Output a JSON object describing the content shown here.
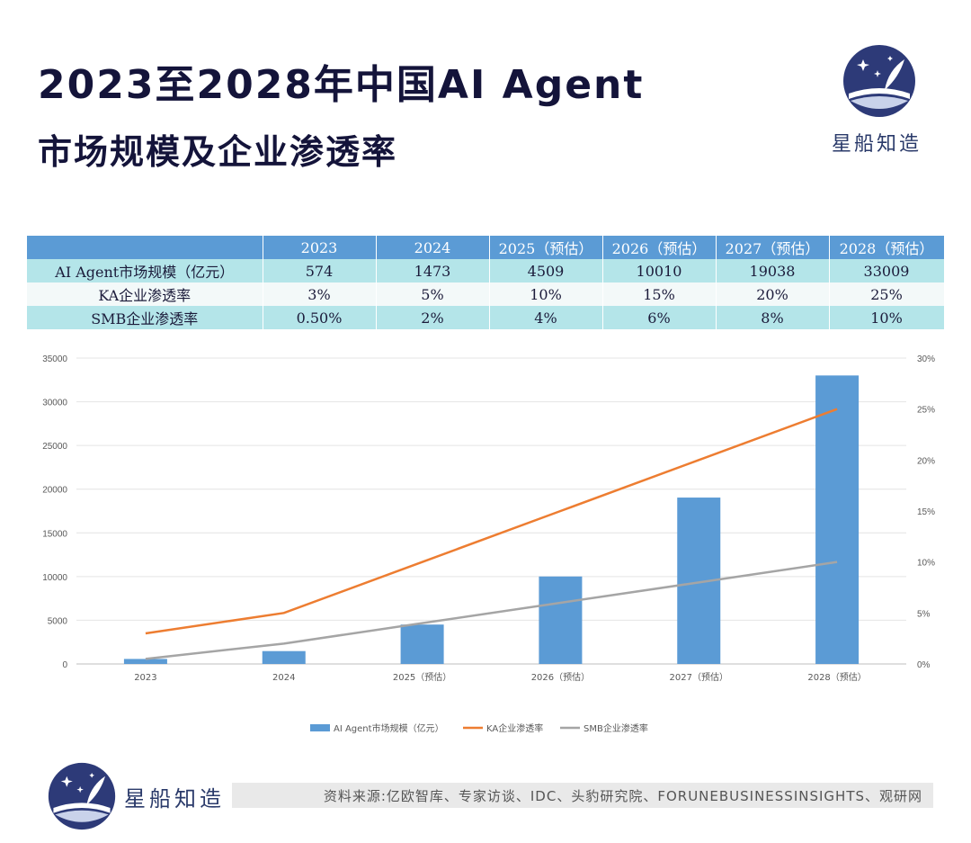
{
  "header": {
    "title_line1": "2023至2028年中国AI Agent",
    "title_line2": "市场规模及企业渗透率",
    "brand_name": "星船知造"
  },
  "table": {
    "columns": [
      "",
      "2023",
      "2024",
      "2025（预估）",
      "2026（预估）",
      "2027（预估）",
      "2028（预估）"
    ],
    "rows": [
      [
        "AI Agent市场规模（亿元）",
        "574",
        "1473",
        "4509",
        "10010",
        "19038",
        "33009"
      ],
      [
        "KA企业渗透率",
        "3%",
        "5%",
        "10%",
        "15%",
        "20%",
        "25%"
      ],
      [
        "SMB企业渗透率",
        "0.50%",
        "2%",
        "4%",
        "6%",
        "8%",
        "10%"
      ]
    ]
  },
  "chart_data": {
    "type": "bar",
    "categories": [
      "2023",
      "2024",
      "2025（预估）",
      "2026（预估）",
      "2027（预估）",
      "2028（预估）"
    ],
    "series": [
      {
        "name": "AI Agent市场规模（亿元）",
        "type": "bar",
        "axis": "left",
        "color": "#5b9bd5",
        "values": [
          574,
          1473,
          4509,
          10010,
          19038,
          33009
        ]
      },
      {
        "name": "KA企业渗透率",
        "type": "line",
        "axis": "right",
        "color": "#ed7d31",
        "values": [
          3,
          5,
          10,
          15,
          20,
          25
        ]
      },
      {
        "name": "SMB企业渗透率",
        "type": "line",
        "axis": "right",
        "color": "#a5a5a5",
        "values": [
          0.5,
          2,
          4,
          6,
          8,
          10
        ]
      }
    ],
    "y_left": {
      "min": 0,
      "max": 35000,
      "ticks": [
        "0",
        "5000",
        "10000",
        "15000",
        "20000",
        "25000",
        "30000",
        "35000"
      ]
    },
    "y_right": {
      "min": 0,
      "max": 30,
      "ticks": [
        "0%",
        "5%",
        "10%",
        "15%",
        "20%",
        "25%",
        "30%"
      ]
    },
    "grid": true,
    "legend_position": "bottom"
  },
  "footer": {
    "brand_name": "星船知造",
    "source": "资料来源:亿欧智库、专家访谈、IDC、头豹研究院、FORUNEBUSINESSINSIGHTS、观研网"
  },
  "colors": {
    "title": "#14143a",
    "header_blue": "#5b9bd5",
    "teal_row": "#b4e5e9",
    "logo_navy": "#2d3a78"
  },
  "icons": [
    "ship-logo-icon"
  ]
}
